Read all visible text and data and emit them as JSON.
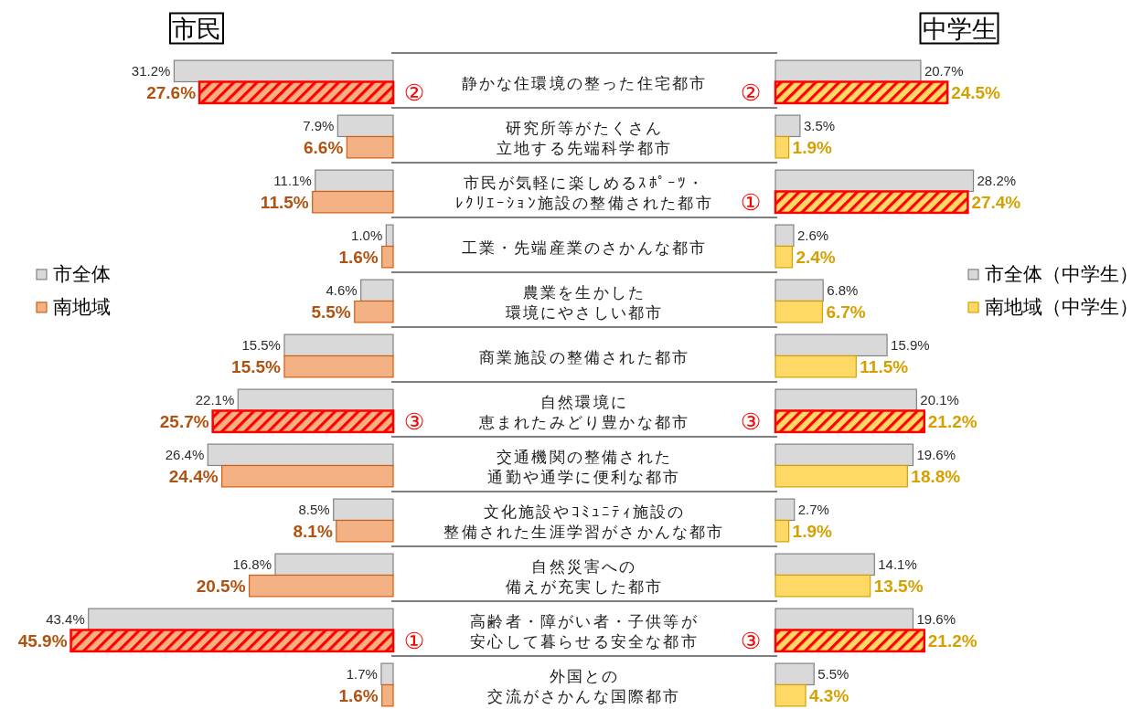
{
  "chart_data": [
    {
      "type": "bar",
      "orientation": "horizontal",
      "title": "市民",
      "categories": [
        "静かな住環境の整った住宅都市",
        "研究所等がたくさん立地する先端科学都市",
        "市民が気軽に楽しめるｽﾎﾟｰﾂ・ﾚｸﾘｴｰｼｮﾝ施設の整備された都市",
        "工業・先端産業のさかんな都市",
        "農業を生かした環境にやさしい都市",
        "商業施設の整備された都市",
        "自然環境に恵まれたみどり豊かな都市",
        "交通機関の整備された通勤や通学に便利な都市",
        "文化施設やｺﾐｭﾆﾃｨ施設の整備された生涯学習がさかんな都市",
        "自然災害への備えが充実した都市",
        "高齢者・障がい者・子供等が安心して暮らせる安全な都市",
        "外国との交流がさかんな国際都市"
      ],
      "series": [
        {
          "name": "市全体",
          "color": "#d9d9d9",
          "values": [
            31.2,
            7.9,
            11.1,
            1.0,
            4.6,
            15.5,
            22.1,
            26.4,
            8.5,
            16.8,
            43.4,
            1.7
          ],
          "value_labels": [
            "31.2%",
            "7.9%",
            "11.1%",
            "1.0%",
            "4.6%",
            "15.5%",
            "22.1%",
            "26.4%",
            "8.5%",
            "16.8%",
            "43.4%",
            "1.7%"
          ]
        },
        {
          "name": "南地域",
          "color": "#f4b183",
          "colors": [
            "#ff0000",
            "#f4b183",
            "#f4b183",
            "#f4b183",
            "#f4b183",
            "#f4b183",
            "#ff0000",
            "#f4b183",
            "#f4b183",
            "#f4b183",
            "#ff0000",
            "#f4b183"
          ],
          "values": [
            27.6,
            6.6,
            11.5,
            1.6,
            5.5,
            15.5,
            25.7,
            24.4,
            8.1,
            20.5,
            45.9,
            1.6
          ],
          "value_labels": [
            "27.6%",
            "6.6%",
            "11.5%",
            "1.6%",
            "5.5%",
            "15.5%",
            "25.7%",
            "24.4%",
            "8.1%",
            "20.5%",
            "45.9%",
            "1.6%"
          ]
        }
      ],
      "legend": "left",
      "annotations": [
        "②",
        "③",
        "①"
      ]
    },
    {
      "type": "bar",
      "orientation": "horizontal",
      "title": "中学生",
      "categories": [
        "静かな住環境の整った住宅都市",
        "研究所等がたくさん立地する先端科学都市",
        "市民が気軽に楽しめるｽﾎﾟｰﾂ・ﾚｸﾘｴｰｼｮﾝ施設の整備された都市",
        "工業・先端産業のさかんな都市",
        "農業を生かした環境にやさしい都市",
        "商業施設の整備された都市",
        "自然環境に恵まれたみどり豊かな都市",
        "交通機関の整備された通勤や通学に便利な都市",
        "文化施設やｺﾐｭﾆﾃｨ施設の整備された生涯学習がさかんな都市",
        "自然災害への備えが充実した都市",
        "高齢者・障がい者・子供等が安心して暮らせる安全な都市",
        "外国との交流がさかんな国際都市"
      ],
      "series": [
        {
          "name": "市全体（中学生）",
          "color": "#d9d9d9",
          "values": [
            20.7,
            3.5,
            28.2,
            2.6,
            6.8,
            15.9,
            20.1,
            19.6,
            2.7,
            14.1,
            19.6,
            5.5
          ],
          "value_labels": [
            "20.7%",
            "3.5%",
            "28.2%",
            "2.6%",
            "6.8%",
            "15.9%",
            "20.1%",
            "19.6%",
            "2.7%",
            "14.1%",
            "19.6%",
            "5.5%"
          ]
        },
        {
          "name": "南地域（中学生）",
          "color": "#ffd966",
          "colors": [
            "#ff0000",
            "#ffd966",
            "#ff0000",
            "#ffd966",
            "#ffd966",
            "#ffd966",
            "#ff0000",
            "#ffd966",
            "#ffd966",
            "#ffd966",
            "#ff0000",
            "#ffd966"
          ],
          "values": [
            24.5,
            1.9,
            27.4,
            2.4,
            6.7,
            11.5,
            21.2,
            18.8,
            1.9,
            13.5,
            21.2,
            4.3
          ],
          "value_labels": [
            "24.5%",
            "1.9%",
            "27.4%",
            "2.4%",
            "6.7%",
            "11.5%",
            "21.2%",
            "18.8%",
            "1.9%",
            "13.5%",
            "21.2%",
            "4.3%"
          ]
        }
      ],
      "tick_labels": false,
      "legend": "right",
      "annotations": [
        "②",
        "①",
        "③",
        "③"
      ]
    }
  ]
}
